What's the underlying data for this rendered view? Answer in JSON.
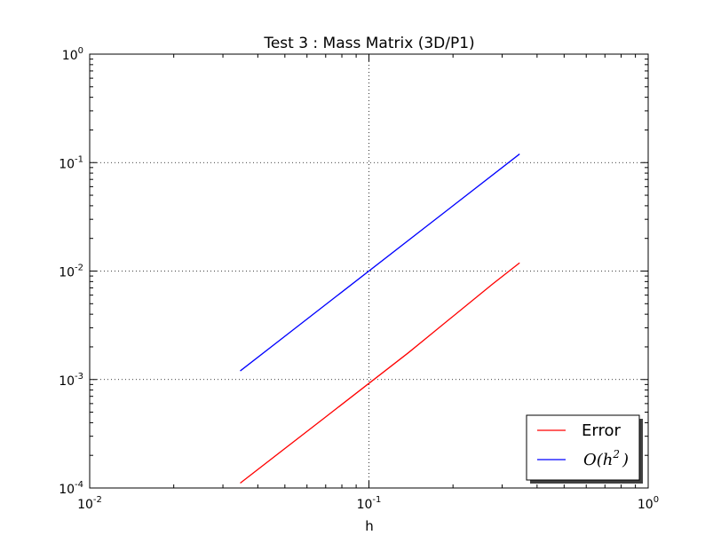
{
  "chart_data": {
    "type": "line",
    "title": "Test 3 : Mass Matrix (3D/P1)",
    "xlabel": "h",
    "ylabel": "",
    "xscale": "log",
    "yscale": "log",
    "xlim": [
      0.01,
      1
    ],
    "ylim": [
      0.0001,
      1
    ],
    "x_ticks": [
      {
        "value": 0.01,
        "base": "10",
        "exp": "-2"
      },
      {
        "value": 0.1,
        "base": "10",
        "exp": "-1"
      },
      {
        "value": 1,
        "base": "10",
        "exp": "0"
      }
    ],
    "y_ticks": [
      {
        "value": 0.0001,
        "base": "10",
        "exp": "-4"
      },
      {
        "value": 0.001,
        "base": "10",
        "exp": "-3"
      },
      {
        "value": 0.01,
        "base": "10",
        "exp": "-2"
      },
      {
        "value": 0.1,
        "base": "10",
        "exp": "-1"
      },
      {
        "value": 1,
        "base": "10",
        "exp": "0"
      }
    ],
    "grid": true,
    "legend_position": "bottom-right",
    "series": [
      {
        "name": "Error",
        "color": "#ff0000",
        "x": [
          0.0346,
          0.0693,
          0.1386,
          0.2772,
          0.3464
        ],
        "y": [
          0.000111,
          0.000443,
          0.00177,
          0.0076,
          0.0119
        ]
      },
      {
        "name": "O(h^2)",
        "legend_main": "O(h",
        "legend_sup": "2",
        "legend_tail": ")",
        "color": "#0000ff",
        "x": [
          0.0346,
          0.3464
        ],
        "y": [
          0.0012,
          0.12
        ]
      }
    ]
  }
}
